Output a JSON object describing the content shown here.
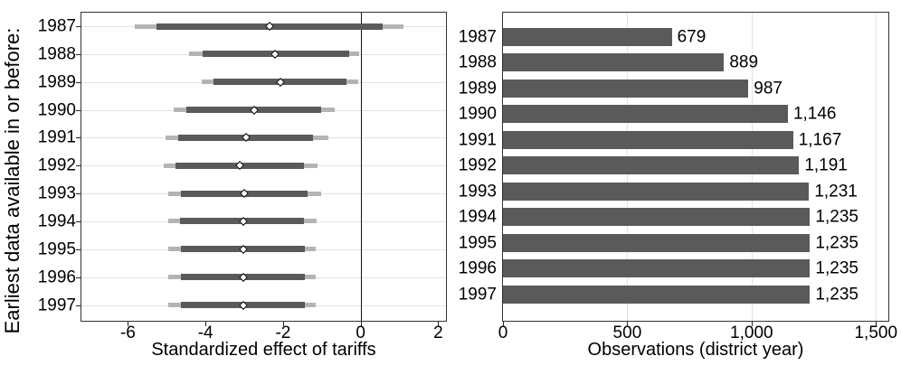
{
  "left_panel": {
    "ylabel": "Earliest data available in or before:",
    "xlabel": "Standardized effect of tariffs"
  },
  "right_panel": {
    "xlabel": "Observations (district year)"
  },
  "chart_data": [
    {
      "type": "scatter",
      "subtype": "coefficient-plot-with-horizontal-confidence-intervals",
      "panel": "left",
      "title": "",
      "xlabel": "Standardized effect of tariffs",
      "ylabel": "Earliest data available in or before:",
      "categories": [
        "1987",
        "1988",
        "1989",
        "1990",
        "1991",
        "1992",
        "1993",
        "1994",
        "1995",
        "1996",
        "1997"
      ],
      "xlim": [
        -7.2,
        2.2
      ],
      "xticks": [
        -6,
        -4,
        -2,
        0,
        2
      ],
      "xtick_labels": [
        "-6",
        "-4",
        "-2",
        "0",
        "2"
      ],
      "reference_line_x": 0,
      "grid": "horizontal gridline per category",
      "marker": "white diamond with black outline",
      "series": [
        {
          "name": "point estimate",
          "values": [
            -2.35,
            -2.2,
            -2.08,
            -2.74,
            -2.95,
            -3.11,
            -2.99,
            -3.03,
            -3.03,
            -3.03,
            -3.03
          ]
        },
        {
          "name": "inner thick dark CI low",
          "values": [
            -5.27,
            -4.07,
            -3.79,
            -4.49,
            -4.71,
            -4.77,
            -4.63,
            -4.65,
            -4.63,
            -4.63,
            -4.63
          ]
        },
        {
          "name": "inner thick dark CI high",
          "values": [
            0.57,
            -0.29,
            -0.37,
            -1.01,
            -1.22,
            -1.46,
            -1.38,
            -1.46,
            -1.43,
            -1.43,
            -1.43
          ]
        },
        {
          "name": "outer thin light CI low",
          "values": [
            -5.83,
            -4.42,
            -4.1,
            -4.81,
            -5.02,
            -5.08,
            -4.95,
            -4.95,
            -4.95,
            -4.95,
            -4.95
          ]
        },
        {
          "name": "outer thin light CI high",
          "values": [
            1.1,
            -0.05,
            -0.06,
            -0.68,
            -0.83,
            -1.11,
            -1.01,
            -1.13,
            -1.15,
            -1.15,
            -1.15
          ]
        }
      ],
      "colors": {
        "inner_ci": "#5a5a5a",
        "outer_ci": "#b4b4b4",
        "marker_fill": "#ffffff",
        "marker_stroke": "#000000",
        "gridline": "#e2e2e2",
        "frame": "#333333",
        "zero_line": "#111111"
      }
    },
    {
      "type": "bar",
      "orientation": "horizontal",
      "panel": "right",
      "title": "",
      "xlabel": "Observations (district year)",
      "categories": [
        "1987",
        "1988",
        "1989",
        "1990",
        "1991",
        "1992",
        "1993",
        "1994",
        "1995",
        "1996",
        "1997"
      ],
      "values": [
        679,
        889,
        987,
        1146,
        1167,
        1191,
        1231,
        1235,
        1235,
        1235,
        1235
      ],
      "value_labels": [
        "679",
        "889",
        "987",
        "1,146",
        "1,167",
        "1,191",
        "1,231",
        "1,235",
        "1,235",
        "1,235",
        "1,235"
      ],
      "xlim": [
        0,
        1550
      ],
      "xticks": [
        0,
        500,
        1000,
        1500
      ],
      "xtick_labels": [
        "0",
        "500",
        "1,000",
        "1,500"
      ],
      "grid": "vertical gridlines at x ticks",
      "bar_color": "#5a5a5a"
    }
  ]
}
